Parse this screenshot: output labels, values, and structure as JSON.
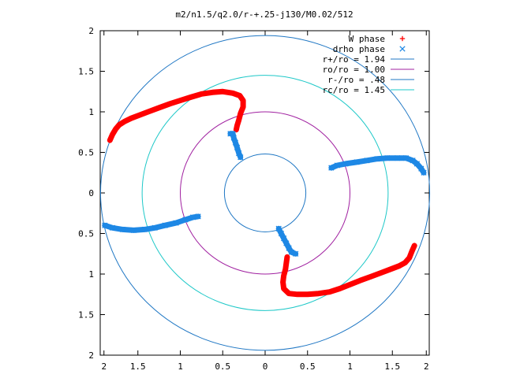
{
  "chart_data": {
    "type": "scatter",
    "title": "m2/n1.5/q2.0/r-+.25-j130/M0.02/512",
    "xlabel": "",
    "ylabel": "",
    "xlim": [
      2,
      -2
    ],
    "ylim": [
      -2,
      2
    ],
    "x_ticks": [
      {
        "value": -1.9,
        "label": "2"
      },
      {
        "value": -1.5,
        "label": "1.5"
      },
      {
        "value": -1.0,
        "label": "1"
      },
      {
        "value": -0.5,
        "label": "0.5"
      },
      {
        "value": 0.0,
        "label": "0"
      },
      {
        "value": 0.5,
        "label": "0.5"
      },
      {
        "value": 1.0,
        "label": "1"
      },
      {
        "value": 1.5,
        "label": "1.5"
      },
      {
        "value": 1.9,
        "label": "2"
      }
    ],
    "y_ticks": [
      {
        "value": 2.0,
        "label": "2"
      },
      {
        "value": 1.5,
        "label": "1.5"
      },
      {
        "value": 1.0,
        "label": "1"
      },
      {
        "value": 0.5,
        "label": "0.5"
      },
      {
        "value": 0.0,
        "label": "0"
      },
      {
        "value": -0.5,
        "label": "0.5"
      },
      {
        "value": -1.0,
        "label": "1"
      },
      {
        "value": -1.5,
        "label": "1.5"
      },
      {
        "value": -2.0,
        "label": "2"
      }
    ],
    "grid": false,
    "legend_position": "top-right",
    "circles": [
      {
        "name": "r+/ro = 1.94",
        "r": 1.94,
        "color": "#1f77c4"
      },
      {
        "name": "ro/ro = 1.00",
        "r": 1.0,
        "color": "#a020a0"
      },
      {
        "name": "r-/ro = .48",
        "r": 0.48,
        "color": "#1f77c4"
      },
      {
        "name": "rc/ro = 1.45",
        "r": 1.45,
        "color": "#1ec8c8"
      }
    ],
    "series": [
      {
        "name": "W phase",
        "marker": "plus",
        "color": "#ff0000",
        "arms": [
          [
            [
              -1.83,
              0.65
            ],
            [
              -1.8,
              0.72
            ],
            [
              -1.76,
              0.79
            ],
            [
              -1.72,
              0.84
            ],
            [
              -1.66,
              0.88
            ],
            [
              -1.58,
              0.92
            ],
            [
              -1.48,
              0.96
            ],
            [
              -1.38,
              1.0
            ],
            [
              -1.25,
              1.05
            ],
            [
              -1.12,
              1.1
            ],
            [
              -1.0,
              1.14
            ],
            [
              -0.88,
              1.18
            ],
            [
              -0.75,
              1.22
            ],
            [
              -0.62,
              1.24
            ],
            [
              -0.5,
              1.25
            ],
            [
              -0.38,
              1.23
            ],
            [
              -0.3,
              1.2
            ],
            [
              -0.26,
              1.14
            ],
            [
              -0.26,
              1.06
            ],
            [
              -0.29,
              0.98
            ],
            [
              -0.31,
              0.9
            ],
            [
              -0.33,
              0.83
            ],
            [
              -0.34,
              0.78
            ]
          ],
          [
            [
              1.76,
              -0.65
            ],
            [
              1.73,
              -0.72
            ],
            [
              1.7,
              -0.8
            ],
            [
              1.65,
              -0.86
            ],
            [
              1.58,
              -0.9
            ],
            [
              1.48,
              -0.94
            ],
            [
              1.38,
              -0.98
            ],
            [
              1.25,
              -1.03
            ],
            [
              1.12,
              -1.08
            ],
            [
              1.0,
              -1.13
            ],
            [
              0.88,
              -1.18
            ],
            [
              0.76,
              -1.22
            ],
            [
              0.63,
              -1.24
            ],
            [
              0.5,
              -1.25
            ],
            [
              0.38,
              -1.25
            ],
            [
              0.28,
              -1.24
            ],
            [
              0.22,
              -1.18
            ],
            [
              0.21,
              -1.1
            ],
            [
              0.22,
              -1.02
            ],
            [
              0.24,
              -0.94
            ],
            [
              0.25,
              -0.86
            ],
            [
              0.26,
              -0.79
            ]
          ]
        ]
      },
      {
        "name": "drho phase",
        "marker": "cross",
        "color": "#1e88e5",
        "arms": [
          [
            [
              -0.41,
              0.73
            ],
            [
              -0.38,
              0.73
            ],
            [
              -0.37,
              0.68
            ],
            [
              -0.35,
              0.62
            ],
            [
              -0.33,
              0.56
            ],
            [
              -0.31,
              0.49
            ],
            [
              -0.29,
              0.44
            ]
          ],
          [
            [
              0.78,
              0.31
            ],
            [
              0.85,
              0.34
            ],
            [
              0.95,
              0.36
            ],
            [
              1.08,
              0.38
            ],
            [
              1.2,
              0.4
            ],
            [
              1.32,
              0.42
            ],
            [
              1.44,
              0.43
            ],
            [
              1.56,
              0.43
            ],
            [
              1.66,
              0.43
            ],
            [
              1.74,
              0.4
            ],
            [
              1.79,
              0.36
            ],
            [
              1.84,
              0.3
            ],
            [
              1.87,
              0.25
            ]
          ],
          [
            [
              -1.89,
              -0.4
            ],
            [
              -1.8,
              -0.43
            ],
            [
              -1.68,
              -0.45
            ],
            [
              -1.55,
              -0.46
            ],
            [
              -1.42,
              -0.45
            ],
            [
              -1.3,
              -0.43
            ],
            [
              -1.18,
              -0.4
            ],
            [
              -1.05,
              -0.37
            ],
            [
              -0.94,
              -0.33
            ],
            [
              -0.85,
              -0.3
            ],
            [
              -0.79,
              -0.29
            ]
          ],
          [
            [
              0.16,
              -0.44
            ],
            [
              0.19,
              -0.5
            ],
            [
              0.22,
              -0.56
            ],
            [
              0.25,
              -0.62
            ],
            [
              0.28,
              -0.68
            ],
            [
              0.31,
              -0.73
            ],
            [
              0.36,
              -0.75
            ]
          ]
        ]
      }
    ]
  }
}
